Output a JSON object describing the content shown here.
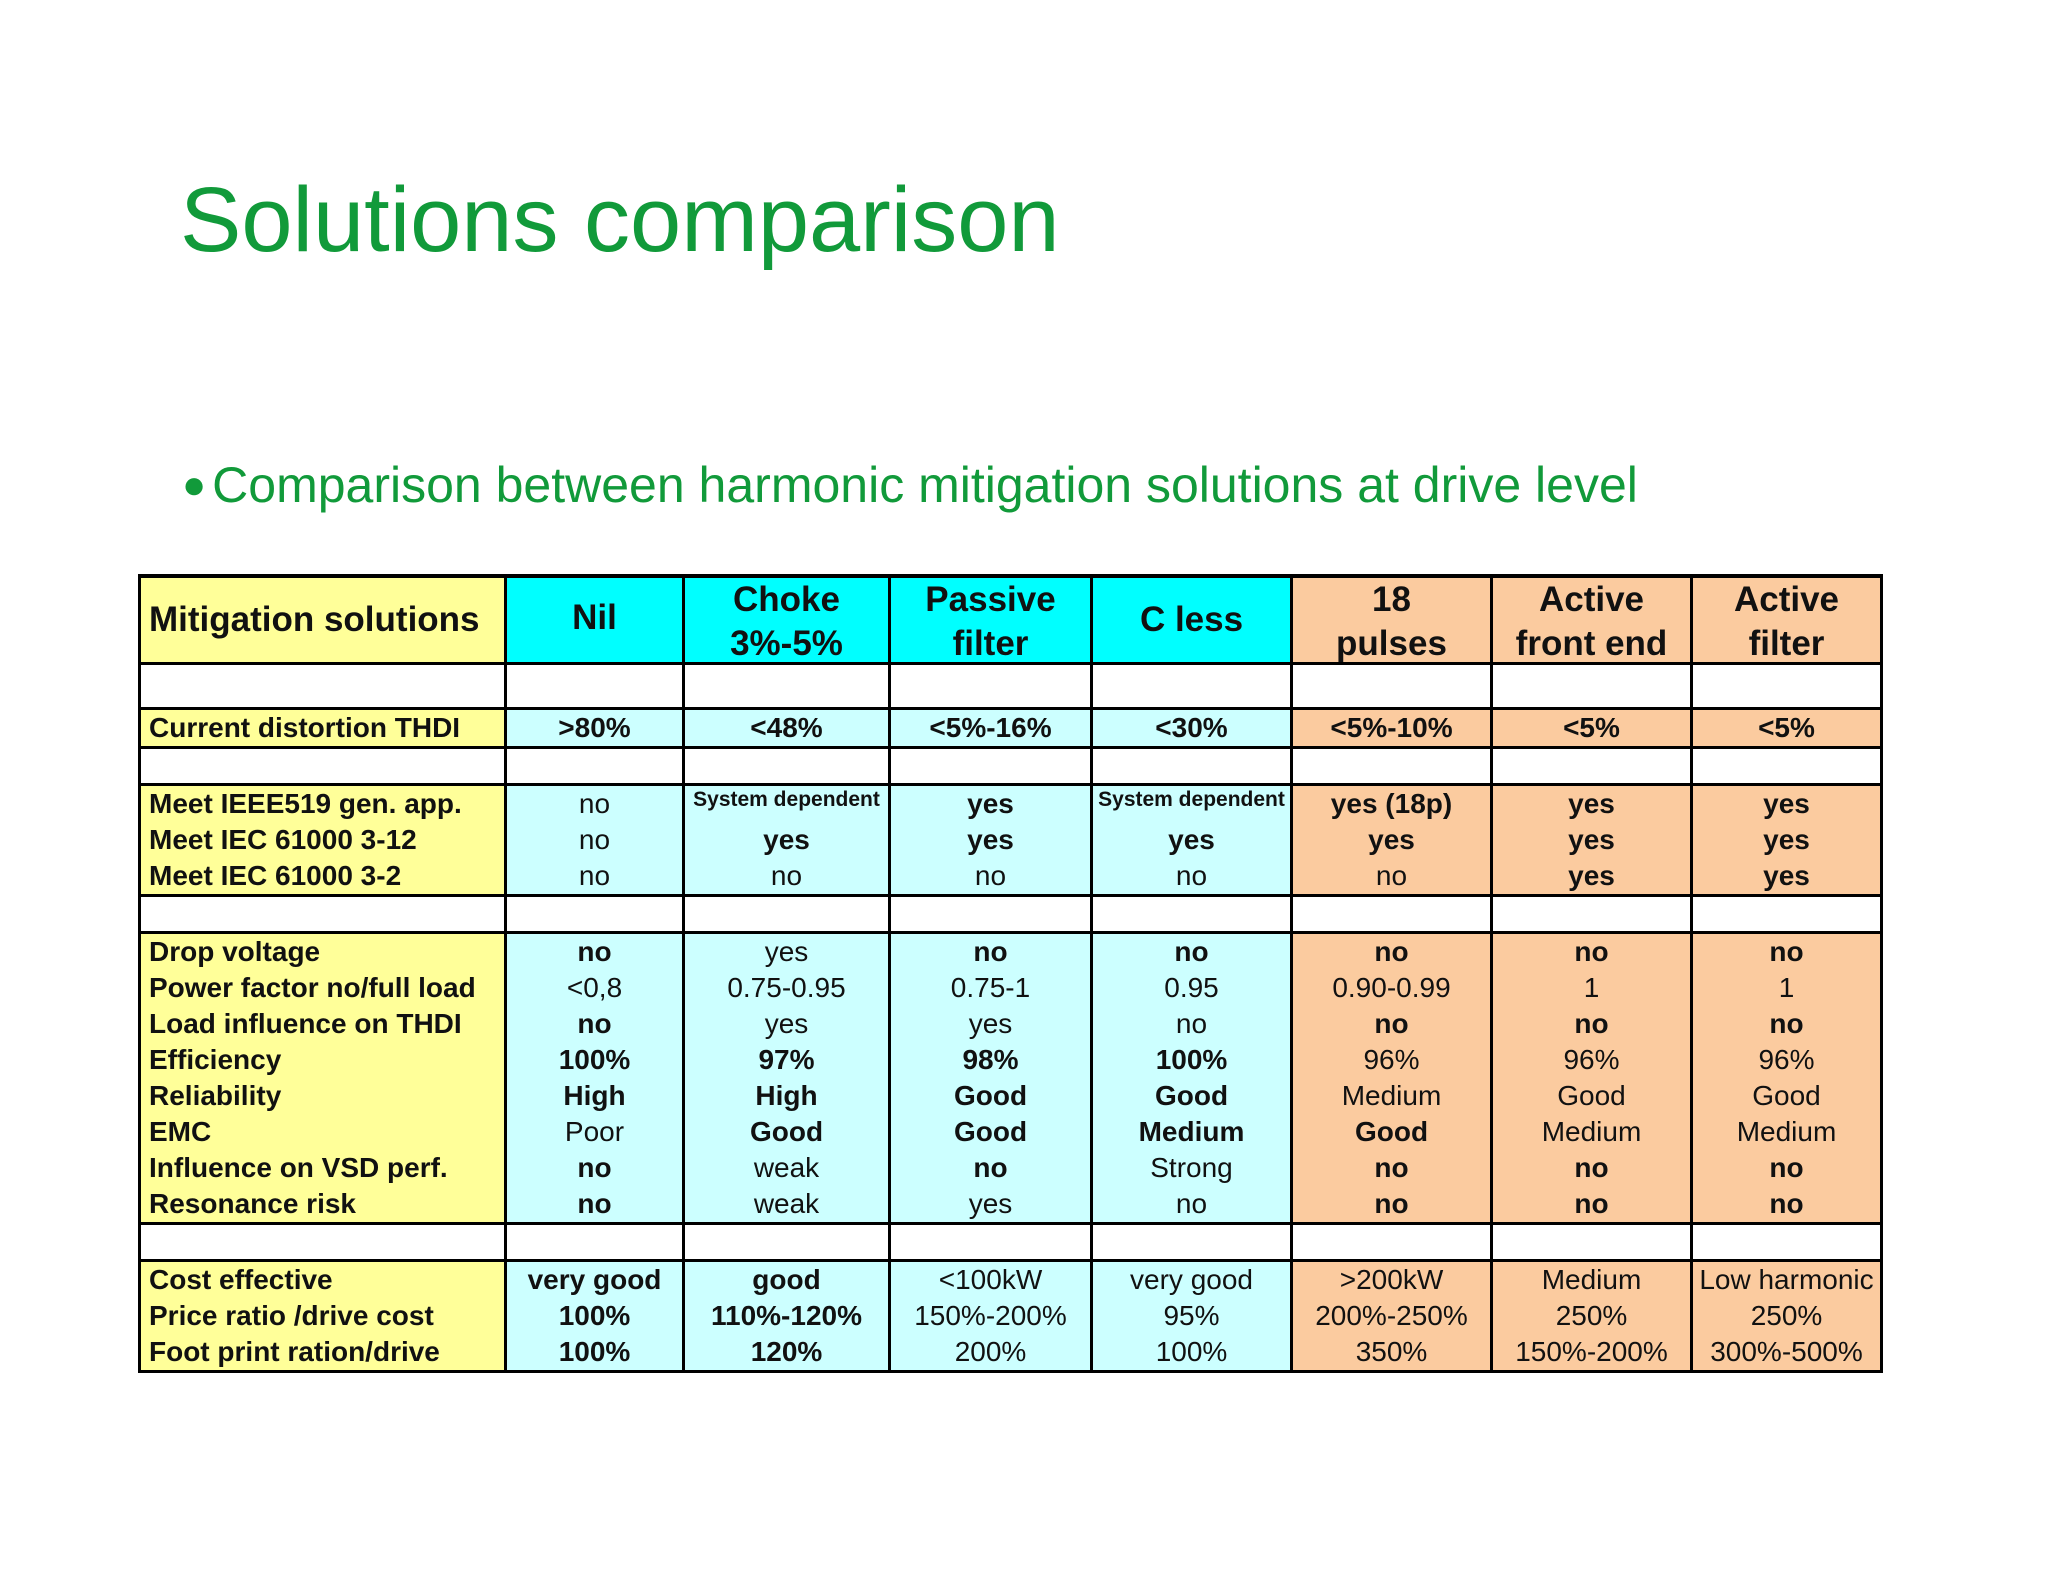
{
  "title": "Solutions comparison",
  "bullet": "Comparison between harmonic mitigation solutions at drive level",
  "table": {
    "header": [
      "Mitigation solutions",
      "Nil",
      "Choke 3%-5%",
      "Passive filter",
      "C less",
      "18 pulses",
      "Active front end",
      "Active filter"
    ],
    "groups": [
      {
        "rows": [
          {
            "label": "Current distortion THDI",
            "cells": [
              ">80%",
              "<48%",
              "<5%-16%",
              "<30%",
              "<5%-10%",
              "<5%",
              "<5%"
            ]
          }
        ]
      },
      {
        "rows": [
          {
            "label": "Meet IEEE519 gen. app.",
            "cells": [
              "no",
              "System dependent",
              "yes",
              "System dependent",
              "yes (18p)",
              "yes",
              "yes"
            ]
          },
          {
            "label": "Meet IEC 61000 3-12",
            "cells": [
              "no",
              "yes",
              "yes",
              "yes",
              "yes",
              "yes",
              "yes"
            ]
          },
          {
            "label": "Meet IEC 61000 3-2",
            "cells": [
              "no",
              "no",
              "no",
              "no",
              "no",
              "yes",
              "yes"
            ]
          }
        ]
      },
      {
        "rows": [
          {
            "label": "Drop voltage",
            "cells": [
              "no",
              "yes",
              "no",
              "no",
              "no",
              "no",
              "no"
            ]
          },
          {
            "label": "Power factor no/full load",
            "cells": [
              "<0,8",
              "0.75-0.95",
              "0.75-1",
              "0.95",
              "0.90-0.99",
              "1",
              "1"
            ]
          },
          {
            "label": "Load influence on THDI",
            "cells": [
              "no",
              "yes",
              "yes",
              "no",
              "no",
              "no",
              "no"
            ]
          },
          {
            "label": "Efficiency",
            "cells": [
              "100%",
              "97%",
              "98%",
              "100%",
              "96%",
              "96%",
              "96%"
            ]
          },
          {
            "label": "Reliability",
            "cells": [
              "High",
              "High",
              "Good",
              "Good",
              "Medium",
              "Good",
              "Good"
            ]
          },
          {
            "label": "EMC",
            "cells": [
              "Poor",
              "Good",
              "Good",
              "Medium",
              "Good",
              "Medium",
              "Medium"
            ]
          },
          {
            "label": "Influence on VSD perf.",
            "cells": [
              "no",
              "weak",
              "no",
              "Strong",
              "no",
              "no",
              "no"
            ]
          },
          {
            "label": "Resonance risk",
            "cells": [
              "no",
              "weak",
              "yes",
              "no",
              "no",
              "no",
              "no"
            ]
          }
        ]
      },
      {
        "rows": [
          {
            "label": "Cost effective",
            "cells": [
              "very good",
              "good",
              "<100kW",
              "very good",
              ">200kW",
              "Medium",
              "Low harmonic"
            ]
          },
          {
            "label": "Price ratio /drive cost",
            "cells": [
              "100%",
              "110%-120%",
              "150%-200%",
              "95%",
              "200%-250%",
              "250%",
              "250%"
            ]
          },
          {
            "label": "Foot print ration/drive",
            "cells": [
              "100%",
              "120%",
              "200%",
              "100%",
              "350%",
              "150%-200%",
              "300%-500%"
            ]
          }
        ]
      }
    ],
    "colors": {
      "label_col": "#ffff99",
      "header_cyan": "#00ffff",
      "body_cyan": "#ccffff",
      "orange": "#fbcb9f",
      "title_green": "#119a3a"
    }
  }
}
